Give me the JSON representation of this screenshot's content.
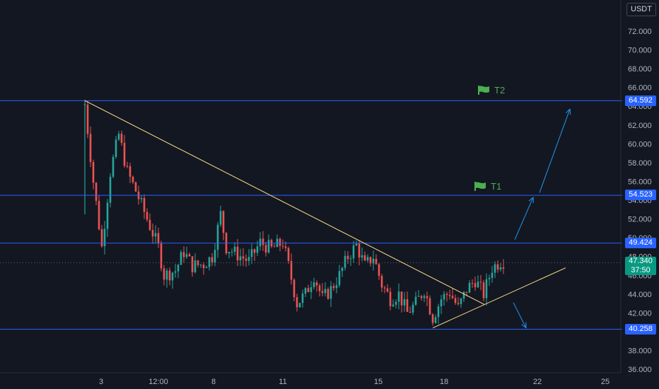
{
  "currency": "USDT",
  "axis": {
    "y_ticks": [
      "72.000",
      "70.000",
      "68.000",
      "66.000",
      "64.000",
      "62.000",
      "60.000",
      "58.000",
      "56.000",
      "54.000",
      "52.000",
      "50.000",
      "48.000",
      "46.000",
      "44.000",
      "42.000",
      "40.000",
      "38.000",
      "36.000"
    ],
    "x_ticks": [
      "3",
      "12:00",
      "8",
      "11",
      "15",
      "18",
      "22",
      "25"
    ]
  },
  "levels": {
    "t2": "64.592",
    "t1": "54.523",
    "l3": "49.424",
    "l4": "40.258"
  },
  "current": {
    "price": "47.340",
    "countdown": "37:50"
  },
  "targets": [
    {
      "label": "T2",
      "icon": "flag-icon"
    },
    {
      "label": "T1",
      "icon": "flag-icon"
    }
  ],
  "colors": {
    "bg": "#131722",
    "up": "#26a69a",
    "down": "#ef5350",
    "level": "#2962ff",
    "trend": "#ffe082",
    "arrow": "#2196f3",
    "flag": "#4caf50"
  },
  "chart_data": {
    "type": "candlestick",
    "ylim": [
      35,
      73
    ],
    "levels": [
      64.592,
      54.523,
      49.424,
      40.258
    ],
    "current_price": 47.34,
    "close_path": [
      [
        0,
        64.2
      ],
      [
        3,
        56
      ],
      [
        6,
        49
      ],
      [
        9,
        57
      ],
      [
        12,
        61
      ],
      [
        15,
        57
      ],
      [
        18,
        55
      ],
      [
        22,
        52
      ],
      [
        26,
        49
      ],
      [
        28,
        46
      ],
      [
        32,
        46.5
      ],
      [
        35,
        48.5
      ],
      [
        38,
        47
      ],
      [
        42,
        47.2
      ],
      [
        45,
        48
      ],
      [
        48,
        52.5
      ],
      [
        50,
        49
      ],
      [
        54,
        48.2
      ],
      [
        58,
        47.5
      ],
      [
        62,
        49.5
      ],
      [
        66,
        48.8
      ],
      [
        70,
        49.5
      ],
      [
        72,
        47
      ],
      [
        75,
        43
      ],
      [
        78,
        44
      ],
      [
        81,
        46
      ],
      [
        84,
        43.5
      ],
      [
        87,
        44.5
      ],
      [
        90,
        46
      ],
      [
        93,
        48
      ],
      [
        96,
        49.2
      ],
      [
        99,
        47
      ],
      [
        102,
        48
      ],
      [
        105,
        45
      ],
      [
        108,
        43.5
      ],
      [
        111,
        44
      ],
      [
        114,
        42
      ],
      [
        117,
        43
      ],
      [
        120,
        44.5
      ],
      [
        123,
        41.5
      ],
      [
        126,
        43.5
      ],
      [
        129,
        44.2
      ],
      [
        132,
        42.5
      ],
      [
        135,
        44.5
      ],
      [
        138,
        45.5
      ],
      [
        141,
        44
      ],
      [
        144,
        46.8
      ],
      [
        147,
        47.5
      ]
    ]
  }
}
